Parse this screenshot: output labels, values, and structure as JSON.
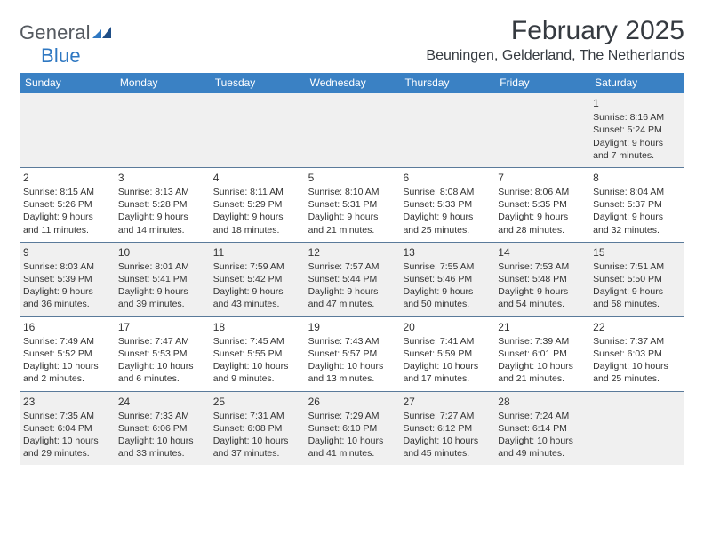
{
  "brand": {
    "name_part1": "General",
    "name_part2": "Blue",
    "text_color": "#555a60",
    "accent_color": "#2f78c2"
  },
  "title": "February 2025",
  "location": "Beuningen, Gelderland, The Netherlands",
  "header_bar_color": "#3a81c4",
  "row_divider_color": "#5a7a9a",
  "shade_color": "#f0f0f0",
  "text_color": "#333333",
  "weekdays": [
    "Sunday",
    "Monday",
    "Tuesday",
    "Wednesday",
    "Thursday",
    "Friday",
    "Saturday"
  ],
  "weeks": [
    [
      {
        "shade": true
      },
      {
        "shade": true
      },
      {
        "shade": true
      },
      {
        "shade": true
      },
      {
        "shade": true
      },
      {
        "shade": true
      },
      {
        "num": "1",
        "shade": true,
        "sunrise": "Sunrise: 8:16 AM",
        "sunset": "Sunset: 5:24 PM",
        "daylight": "Daylight: 9 hours and 7 minutes."
      }
    ],
    [
      {
        "num": "2",
        "sunrise": "Sunrise: 8:15 AM",
        "sunset": "Sunset: 5:26 PM",
        "daylight": "Daylight: 9 hours and 11 minutes."
      },
      {
        "num": "3",
        "sunrise": "Sunrise: 8:13 AM",
        "sunset": "Sunset: 5:28 PM",
        "daylight": "Daylight: 9 hours and 14 minutes."
      },
      {
        "num": "4",
        "sunrise": "Sunrise: 8:11 AM",
        "sunset": "Sunset: 5:29 PM",
        "daylight": "Daylight: 9 hours and 18 minutes."
      },
      {
        "num": "5",
        "sunrise": "Sunrise: 8:10 AM",
        "sunset": "Sunset: 5:31 PM",
        "daylight": "Daylight: 9 hours and 21 minutes."
      },
      {
        "num": "6",
        "sunrise": "Sunrise: 8:08 AM",
        "sunset": "Sunset: 5:33 PM",
        "daylight": "Daylight: 9 hours and 25 minutes."
      },
      {
        "num": "7",
        "sunrise": "Sunrise: 8:06 AM",
        "sunset": "Sunset: 5:35 PM",
        "daylight": "Daylight: 9 hours and 28 minutes."
      },
      {
        "num": "8",
        "sunrise": "Sunrise: 8:04 AM",
        "sunset": "Sunset: 5:37 PM",
        "daylight": "Daylight: 9 hours and 32 minutes."
      }
    ],
    [
      {
        "num": "9",
        "shade": true,
        "sunrise": "Sunrise: 8:03 AM",
        "sunset": "Sunset: 5:39 PM",
        "daylight": "Daylight: 9 hours and 36 minutes."
      },
      {
        "num": "10",
        "shade": true,
        "sunrise": "Sunrise: 8:01 AM",
        "sunset": "Sunset: 5:41 PM",
        "daylight": "Daylight: 9 hours and 39 minutes."
      },
      {
        "num": "11",
        "shade": true,
        "sunrise": "Sunrise: 7:59 AM",
        "sunset": "Sunset: 5:42 PM",
        "daylight": "Daylight: 9 hours and 43 minutes."
      },
      {
        "num": "12",
        "shade": true,
        "sunrise": "Sunrise: 7:57 AM",
        "sunset": "Sunset: 5:44 PM",
        "daylight": "Daylight: 9 hours and 47 minutes."
      },
      {
        "num": "13",
        "shade": true,
        "sunrise": "Sunrise: 7:55 AM",
        "sunset": "Sunset: 5:46 PM",
        "daylight": "Daylight: 9 hours and 50 minutes."
      },
      {
        "num": "14",
        "shade": true,
        "sunrise": "Sunrise: 7:53 AM",
        "sunset": "Sunset: 5:48 PM",
        "daylight": "Daylight: 9 hours and 54 minutes."
      },
      {
        "num": "15",
        "shade": true,
        "sunrise": "Sunrise: 7:51 AM",
        "sunset": "Sunset: 5:50 PM",
        "daylight": "Daylight: 9 hours and 58 minutes."
      }
    ],
    [
      {
        "num": "16",
        "sunrise": "Sunrise: 7:49 AM",
        "sunset": "Sunset: 5:52 PM",
        "daylight": "Daylight: 10 hours and 2 minutes."
      },
      {
        "num": "17",
        "sunrise": "Sunrise: 7:47 AM",
        "sunset": "Sunset: 5:53 PM",
        "daylight": "Daylight: 10 hours and 6 minutes."
      },
      {
        "num": "18",
        "sunrise": "Sunrise: 7:45 AM",
        "sunset": "Sunset: 5:55 PM",
        "daylight": "Daylight: 10 hours and 9 minutes."
      },
      {
        "num": "19",
        "sunrise": "Sunrise: 7:43 AM",
        "sunset": "Sunset: 5:57 PM",
        "daylight": "Daylight: 10 hours and 13 minutes."
      },
      {
        "num": "20",
        "sunrise": "Sunrise: 7:41 AM",
        "sunset": "Sunset: 5:59 PM",
        "daylight": "Daylight: 10 hours and 17 minutes."
      },
      {
        "num": "21",
        "sunrise": "Sunrise: 7:39 AM",
        "sunset": "Sunset: 6:01 PM",
        "daylight": "Daylight: 10 hours and 21 minutes."
      },
      {
        "num": "22",
        "sunrise": "Sunrise: 7:37 AM",
        "sunset": "Sunset: 6:03 PM",
        "daylight": "Daylight: 10 hours and 25 minutes."
      }
    ],
    [
      {
        "num": "23",
        "shade": true,
        "sunrise": "Sunrise: 7:35 AM",
        "sunset": "Sunset: 6:04 PM",
        "daylight": "Daylight: 10 hours and 29 minutes."
      },
      {
        "num": "24",
        "shade": true,
        "sunrise": "Sunrise: 7:33 AM",
        "sunset": "Sunset: 6:06 PM",
        "daylight": "Daylight: 10 hours and 33 minutes."
      },
      {
        "num": "25",
        "shade": true,
        "sunrise": "Sunrise: 7:31 AM",
        "sunset": "Sunset: 6:08 PM",
        "daylight": "Daylight: 10 hours and 37 minutes."
      },
      {
        "num": "26",
        "shade": true,
        "sunrise": "Sunrise: 7:29 AM",
        "sunset": "Sunset: 6:10 PM",
        "daylight": "Daylight: 10 hours and 41 minutes."
      },
      {
        "num": "27",
        "shade": true,
        "sunrise": "Sunrise: 7:27 AM",
        "sunset": "Sunset: 6:12 PM",
        "daylight": "Daylight: 10 hours and 45 minutes."
      },
      {
        "num": "28",
        "shade": true,
        "sunrise": "Sunrise: 7:24 AM",
        "sunset": "Sunset: 6:14 PM",
        "daylight": "Daylight: 10 hours and 49 minutes."
      },
      {
        "shade": true
      }
    ]
  ]
}
